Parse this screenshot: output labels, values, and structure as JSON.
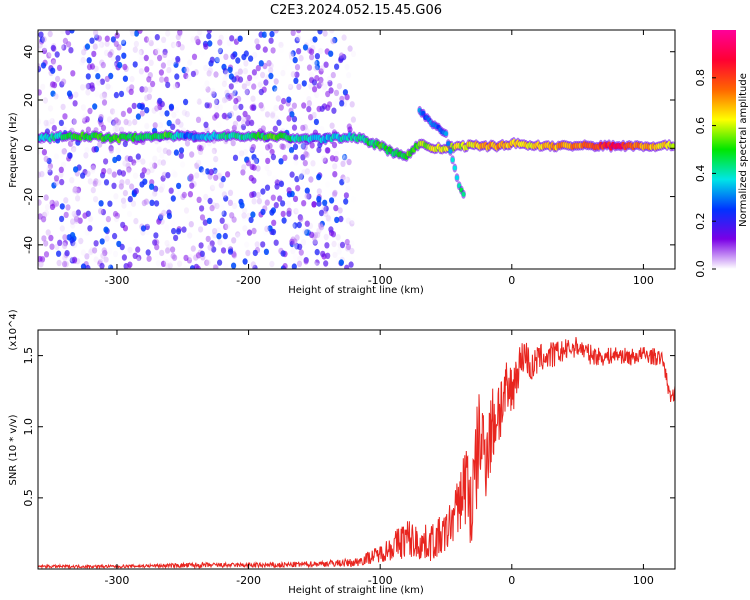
{
  "figure": {
    "title": "C2E3.2024.052.15.45.G06"
  },
  "chart_data": [
    {
      "type": "heatmap",
      "xlabel": "Height of straight line (km)",
      "ylabel": "Frequency (Hz)",
      "xlim": [
        -360,
        124
      ],
      "ylim": [
        -50,
        49
      ],
      "x_ticks": [
        -300,
        -200,
        -100,
        0,
        100
      ],
      "x_tick_labels": [
        "-300",
        "-200",
        "-100",
        "0",
        "100"
      ],
      "y_ticks": [
        -40,
        -20,
        0,
        20,
        40
      ],
      "y_tick_labels": [
        "-40",
        "-20",
        "0",
        "20",
        "40"
      ],
      "colorbar": {
        "label": "Normalized spectral amplitude",
        "range": [
          0,
          1
        ],
        "ticks": [
          0.0,
          0.2,
          0.4,
          0.6,
          0.8
        ],
        "tick_labels": [
          "0.0",
          "0.2",
          "0.4",
          "0.6",
          "0.8"
        ],
        "colormap": [
          "#ffffff",
          "#7a00e6",
          "#0033ff",
          "#00e6e6",
          "#00e600",
          "#ffff00",
          "#ff6600",
          "#ff0033",
          "#ff0099"
        ]
      },
      "noise_region_x": [
        -360,
        -120
      ],
      "ridge": [
        {
          "x": -360,
          "freq": 4,
          "amp": 0.35
        },
        {
          "x": -340,
          "freq": 5,
          "amp": 0.45
        },
        {
          "x": -320,
          "freq": 5,
          "amp": 0.5
        },
        {
          "x": -300,
          "freq": 4,
          "amp": 0.5
        },
        {
          "x": -280,
          "freq": 5,
          "amp": 0.45
        },
        {
          "x": -260,
          "freq": 5,
          "amp": 0.5
        },
        {
          "x": -248,
          "freq": 5,
          "amp": 0.3
        },
        {
          "x": -240,
          "freq": 5,
          "amp": 0.3
        },
        {
          "x": -220,
          "freq": 5,
          "amp": 0.4
        },
        {
          "x": -200,
          "freq": 5,
          "amp": 0.45
        },
        {
          "x": -180,
          "freq": 5,
          "amp": 0.5
        },
        {
          "x": -160,
          "freq": 4,
          "amp": 0.4
        },
        {
          "x": -140,
          "freq": 4,
          "amp": 0.35
        },
        {
          "x": -120,
          "freq": 5,
          "amp": 0.4
        },
        {
          "x": -110,
          "freq": 3,
          "amp": 0.45
        },
        {
          "x": -100,
          "freq": 1,
          "amp": 0.5
        },
        {
          "x": -90,
          "freq": -2,
          "amp": 0.45
        },
        {
          "x": -80,
          "freq": -3,
          "amp": 0.5
        },
        {
          "x": -70,
          "freq": 2,
          "amp": 0.55
        },
        {
          "x": -60,
          "freq": 0,
          "amp": 0.6
        },
        {
          "x": -50,
          "freq": 0,
          "amp": 0.6
        },
        {
          "x": -40,
          "freq": 1,
          "amp": 0.6
        },
        {
          "x": -30,
          "freq": 1,
          "amp": 0.65
        },
        {
          "x": -20,
          "freq": 1,
          "amp": 0.7
        },
        {
          "x": -10,
          "freq": 1,
          "amp": 0.7
        },
        {
          "x": 0,
          "freq": 2,
          "amp": 0.65
        },
        {
          "x": 20,
          "freq": 1,
          "amp": 0.65
        },
        {
          "x": 40,
          "freq": 1,
          "amp": 0.7
        },
        {
          "x": 60,
          "freq": 1,
          "amp": 0.75
        },
        {
          "x": 80,
          "freq": 1,
          "amp": 0.9
        },
        {
          "x": 100,
          "freq": 1,
          "amp": 0.7
        },
        {
          "x": 124,
          "freq": 1,
          "amp": 0.6
        }
      ],
      "branch": [
        {
          "x": -70,
          "freq": 16,
          "amp": 0.3
        },
        {
          "x": -60,
          "freq": 10,
          "amp": 0.3
        },
        {
          "x": -50,
          "freq": 6,
          "amp": 0.3
        },
        {
          "x": -45,
          "freq": -5,
          "amp": 0.35
        },
        {
          "x": -40,
          "freq": -15,
          "amp": 0.4
        },
        {
          "x": -35,
          "freq": -22,
          "amp": 0.45
        }
      ]
    },
    {
      "type": "line",
      "xlabel": "Height of straight line (km)",
      "ylabel": "SNR (10 * v/v)",
      "y_multiplier": "(x10^4)",
      "xlim": [
        -360,
        124
      ],
      "ylim": [
        0,
        1.68
      ],
      "x_ticks": [
        -300,
        -200,
        -100,
        0,
        100
      ],
      "x_tick_labels": [
        "-300",
        "-200",
        "-100",
        "0",
        "100"
      ],
      "y_ticks": [
        0.5,
        1.0,
        1.5
      ],
      "y_tick_labels": [
        "0.5",
        "1.0",
        "1.5"
      ],
      "series": [
        {
          "color": "#e8251f",
          "x": [
            -360,
            -330,
            -300,
            -270,
            -240,
            -210,
            -180,
            -150,
            -120,
            -100,
            -90,
            -80,
            -70,
            -60,
            -50,
            -40,
            -35,
            -30,
            -25,
            -20,
            -15,
            -10,
            -5,
            0,
            5,
            10,
            15,
            20,
            30,
            40,
            50,
            60,
            70,
            80,
            90,
            100,
            110,
            115,
            120,
            124
          ],
          "y": [
            0.02,
            0.02,
            0.02,
            0.025,
            0.03,
            0.03,
            0.03,
            0.04,
            0.05,
            0.12,
            0.18,
            0.25,
            0.2,
            0.22,
            0.28,
            0.5,
            0.7,
            0.5,
            1.0,
            0.9,
            1.05,
            1.2,
            1.25,
            1.3,
            1.45,
            1.55,
            1.42,
            1.5,
            1.52,
            1.55,
            1.58,
            1.52,
            1.5,
            1.52,
            1.5,
            1.52,
            1.5,
            1.48,
            1.22,
            1.25
          ],
          "spread": [
            0.01,
            0.01,
            0.01,
            0.012,
            0.02,
            0.015,
            0.02,
            0.02,
            0.03,
            0.06,
            0.1,
            0.15,
            0.12,
            0.14,
            0.15,
            0.2,
            0.35,
            0.4,
            0.35,
            0.35,
            0.3,
            0.3,
            0.25,
            0.2,
            0.15,
            0.12,
            0.12,
            0.1,
            0.1,
            0.08,
            0.07,
            0.07,
            0.06,
            0.06,
            0.06,
            0.06,
            0.06,
            0.05,
            0.05,
            0.05
          ]
        }
      ]
    }
  ]
}
